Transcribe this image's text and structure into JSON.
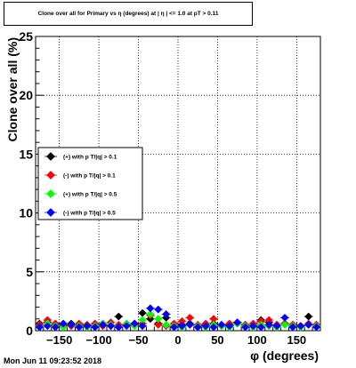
{
  "title": "Clone  over all for Primary vs η (degrees) at | η | <= 1.0 at pT > 0.11",
  "timestamp": "Mon Jun 11 09:23:52 2018",
  "chart_data": {
    "type": "scatter",
    "xlabel": "φ (degrees)",
    "ylabel": "Clone  over all (%)",
    "xlim": [
      -180,
      180
    ],
    "ylim": [
      0,
      25
    ],
    "xticks": [
      -150,
      -100,
      -50,
      0,
      50,
      100,
      150
    ],
    "xtick_labels": [
      "−150",
      "−100",
      "−50",
      "0",
      "50",
      "100",
      "150"
    ],
    "yticks": [
      0,
      5,
      10,
      15,
      20,
      25
    ],
    "ytick_labels": [
      "0",
      "5",
      "10",
      "15",
      "20",
      "25"
    ],
    "grid": true,
    "legend_position": "middle-left",
    "series": [
      {
        "name": "(+) with p T/|q| > 0.1",
        "color": "#000000",
        "x": [
          -175,
          -165,
          -155,
          -145,
          -135,
          -125,
          -115,
          -105,
          -95,
          -85,
          -75,
          -65,
          -55,
          -45,
          -35,
          -25,
          -15,
          -5,
          5,
          15,
          25,
          35,
          45,
          55,
          65,
          75,
          85,
          95,
          105,
          115,
          125,
          135,
          145,
          155,
          165,
          175
        ],
        "y": [
          0.6,
          0.7,
          0.5,
          0.4,
          0.6,
          0.5,
          0.5,
          0.4,
          0.6,
          0.4,
          1.2,
          0.5,
          0.6,
          1.5,
          1.0,
          0.6,
          1.1,
          0.4,
          0.5,
          0.6,
          0.4,
          0.5,
          0.6,
          0.4,
          0.5,
          0.6,
          0.5,
          0.4,
          0.9,
          0.7,
          0.5,
          0.6,
          0.5,
          0.4,
          1.2,
          0.5
        ]
      },
      {
        "name": "(-) with p T/|q| > 0.1",
        "color": "#ff0000",
        "x": [
          -175,
          -165,
          -155,
          -145,
          -135,
          -125,
          -115,
          -105,
          -95,
          -85,
          -75,
          -65,
          -55,
          -45,
          -35,
          -25,
          -15,
          -5,
          5,
          15,
          25,
          35,
          45,
          55,
          65,
          75,
          85,
          95,
          105,
          115,
          125,
          135,
          145,
          155,
          165,
          175
        ],
        "y": [
          0.5,
          0.9,
          0.6,
          0.5,
          0.4,
          0.6,
          0.5,
          0.6,
          0.4,
          0.7,
          0.5,
          0.6,
          0.5,
          0.6,
          1.3,
          0.5,
          0.4,
          0.6,
          0.8,
          1.1,
          0.5,
          0.6,
          1.0,
          0.5,
          0.6,
          0.7,
          0.5,
          0.6,
          0.8,
          0.9,
          0.5,
          0.6,
          0.5,
          0.4,
          0.6,
          0.5
        ]
      },
      {
        "name": "(+) with p T/|q| > 0.5",
        "color": "#00ff00",
        "x": [
          -175,
          -165,
          -155,
          -145,
          -135,
          -125,
          -115,
          -105,
          -95,
          -85,
          -75,
          -65,
          -55,
          -45,
          -35,
          -25,
          -15,
          -5,
          5,
          15,
          25,
          35,
          45,
          55,
          65,
          75,
          85,
          95,
          105,
          115,
          125,
          135,
          145,
          155,
          165,
          175
        ],
        "y": [
          0.3,
          0.6,
          0.4,
          0.3,
          0.5,
          0.4,
          0.3,
          0.4,
          0.6,
          0.5,
          0.3,
          0.6,
          0.4,
          0.9,
          1.4,
          1.0,
          0.5,
          0.4,
          0.3,
          0.5,
          0.4,
          0.3,
          0.5,
          0.4,
          0.3,
          0.6,
          0.4,
          0.3,
          0.5,
          0.4,
          0.3,
          0.5,
          0.4,
          0.3,
          0.5,
          0.4
        ]
      },
      {
        "name": "(-) with p T/|q| > 0.5",
        "color": "#0000ff",
        "x": [
          -175,
          -165,
          -155,
          -145,
          -135,
          -125,
          -115,
          -105,
          -95,
          -85,
          -75,
          -65,
          -55,
          -45,
          -35,
          -25,
          -15,
          -5,
          5,
          15,
          25,
          35,
          45,
          55,
          65,
          75,
          85,
          95,
          105,
          115,
          125,
          135,
          145,
          155,
          165,
          175
        ],
        "y": [
          0.3,
          0.4,
          0.3,
          0.6,
          0.5,
          0.3,
          0.4,
          0.3,
          0.5,
          0.4,
          0.3,
          0.4,
          0.6,
          0.4,
          1.9,
          1.8,
          1.4,
          0.3,
          0.4,
          0.5,
          0.3,
          0.4,
          0.3,
          0.5,
          0.4,
          0.7,
          0.3,
          0.4,
          0.3,
          0.5,
          0.4,
          1.1,
          0.3,
          0.4,
          0.5,
          0.3
        ]
      }
    ]
  }
}
